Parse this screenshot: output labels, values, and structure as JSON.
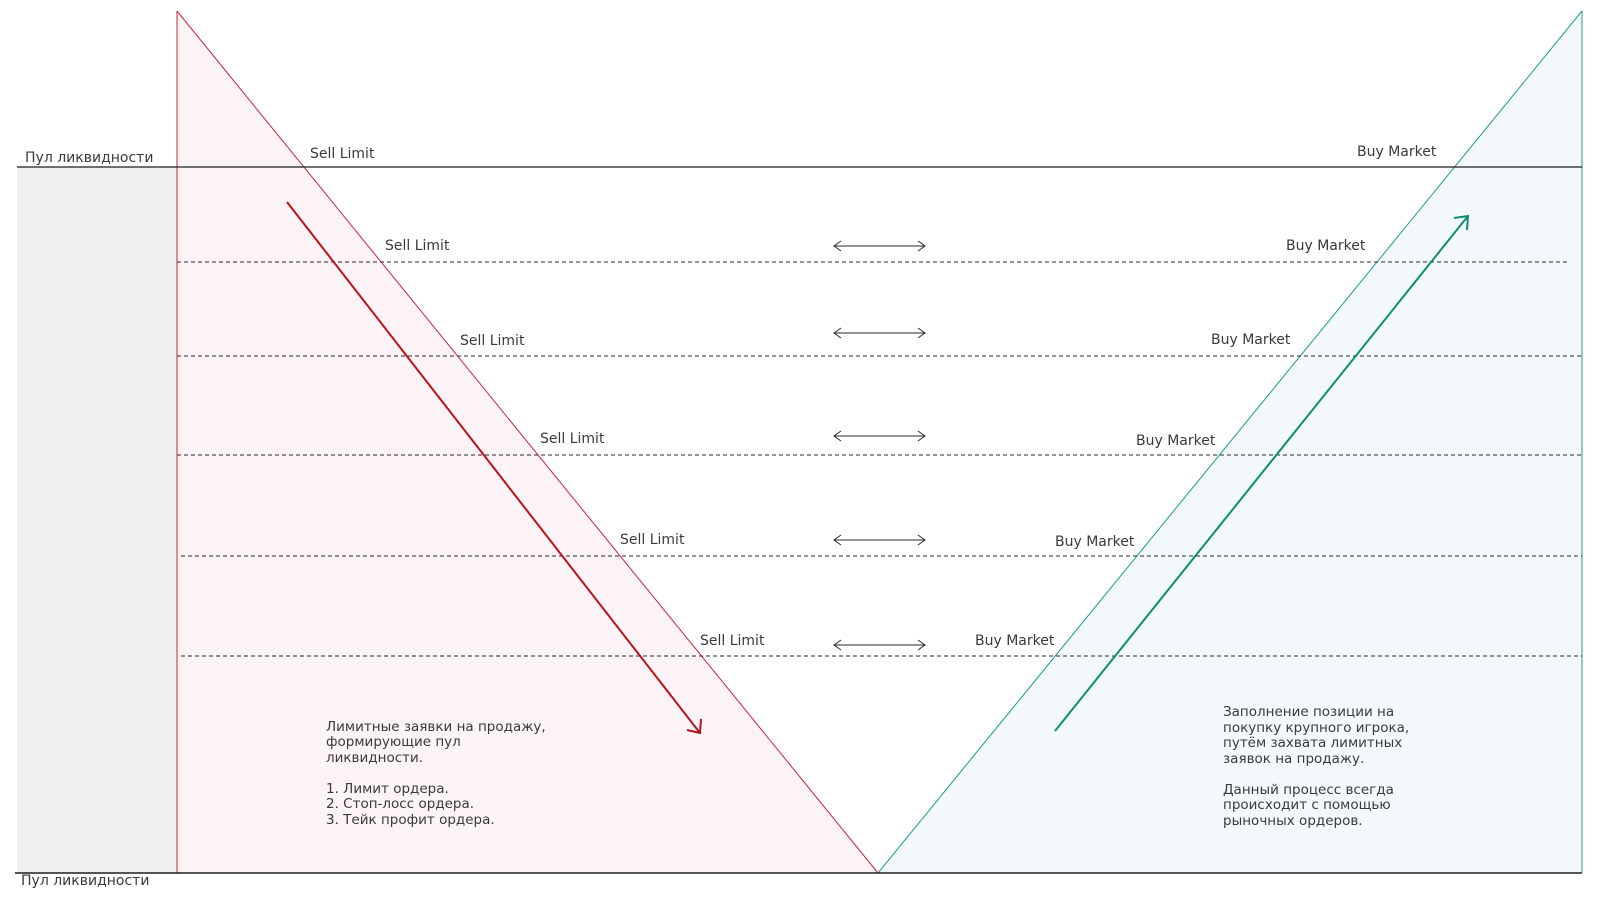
{
  "colors": {
    "sell": "#c8283c",
    "sell_arrow": "#b4141e",
    "sell_fill": "#fbf3f5",
    "buy": "#1e9b87",
    "buy_arrow": "#0f8c73",
    "buy_fill": "#f3f9fa",
    "side_panel": "#efeff0",
    "line": "#1e1e1e"
  },
  "pool_labels": {
    "top": "Пул ликвидности",
    "bottom": "Пул ликвидности"
  },
  "levels": [
    {
      "sell": "Sell Limit",
      "buy": "Buy Market"
    },
    {
      "sell": "Sell Limit",
      "buy": "Buy Market"
    },
    {
      "sell": "Sell Limit",
      "buy": "Buy Market"
    },
    {
      "sell": "Sell Limit",
      "buy": "Buy Market"
    },
    {
      "sell": "Sell Limit",
      "buy": "Buy Market"
    },
    {
      "sell": "Sell Limit",
      "buy": "Buy Market"
    }
  ],
  "notes": {
    "sell": [
      "Лимитные заявки на продажу,",
      "формирующие пул",
      "ликвидности.",
      "",
      "1. Лимит ордера.",
      "2. Стоп-лосс ордера.",
      "3. Тейк профит ордера."
    ],
    "buy": [
      "Заполнение позиции на",
      "покупку крупного игрока,",
      "путём захвата лимитных",
      "заявок на продажу.",
      "",
      "Данный процесс всегда",
      "происходит с помощью",
      "рыночных ордеров."
    ]
  },
  "icons": {
    "level_arrow": "double-headed-arrow-icon",
    "sell_arrow": "down-right-arrow-icon",
    "buy_arrow": "up-right-arrow-icon"
  }
}
